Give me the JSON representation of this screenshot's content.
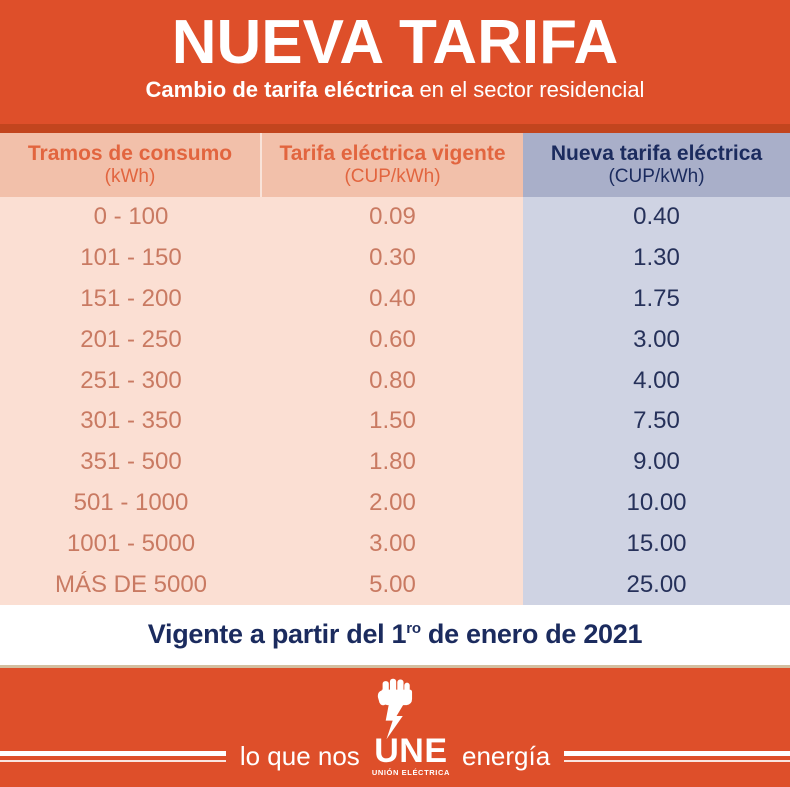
{
  "colors": {
    "orange": "#DE4F2A",
    "orange-dark": "#C2451E",
    "header-salmon": "#F2C0AA",
    "row-pink": "#FBDFD3",
    "header-blue": "#A9AFC9",
    "row-lavender": "#CFD3E3",
    "text-orange-header": "#E2653F",
    "text-orange-row": "#C97A62",
    "navy": "#1B2B5E",
    "navy-row": "#26315A",
    "tan-line": "#D3BFA0",
    "white": "#FFFFFF"
  },
  "banner": {
    "title": "NUEVA TARIFA",
    "subtitle_bold": "Cambio de tarifa eléctrica",
    "subtitle_regular": " en el sector residencial"
  },
  "table": {
    "headers": [
      {
        "line1": "Tramos de consumo",
        "line2": "(kWh)"
      },
      {
        "line1": "Tarifa eléctrica vigente",
        "line2": "(CUP/kWh)"
      },
      {
        "line1": "Nueva tarifa eléctrica",
        "line2": "(CUP/kWh)"
      }
    ],
    "rows": [
      [
        "0 - 100",
        "0.09",
        "0.40"
      ],
      [
        "101 - 150",
        "0.30",
        "1.30"
      ],
      [
        "151 - 200",
        "0.40",
        "1.75"
      ],
      [
        "201 - 250",
        "0.60",
        "3.00"
      ],
      [
        "251 - 300",
        "0.80",
        "4.00"
      ],
      [
        "301 - 350",
        "1.50",
        "7.50"
      ],
      [
        "351 - 500",
        "1.80",
        "9.00"
      ],
      [
        "501 - 1000",
        "2.00",
        "10.00"
      ],
      [
        "1001 - 5000",
        "3.00",
        "15.00"
      ],
      [
        "MÁS DE 5000",
        "5.00",
        "25.00"
      ]
    ]
  },
  "effective_date": {
    "prefix": "Vigente a partir del 1",
    "superscript": "ro",
    "suffix": " de enero de 2021"
  },
  "footer": {
    "logo": "une-fist-lightning-logo",
    "tagline_left": "lo que nos",
    "tagline_brand": "UNE",
    "tagline_brand_sub": "UNIÓN ELÉCTRICA",
    "tagline_right": "energía"
  }
}
